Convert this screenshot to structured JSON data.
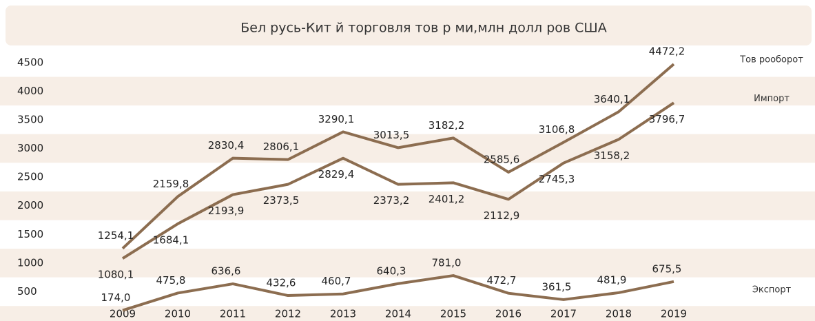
{
  "chart_data": {
    "type": "line",
    "title": "Бел русь-Кит й торговля тов р ми,млн долл ров США",
    "categories": [
      "2009",
      "2010",
      "2011",
      "2012",
      "2013",
      "2014",
      "2015",
      "2016",
      "2017",
      "2018",
      "2019"
    ],
    "series": [
      {
        "name": "Тов рооборот",
        "color": "#8c6d50",
        "values": [
          1254.1,
          2159.8,
          2830.4,
          2806.1,
          3290.1,
          3013.5,
          3182.2,
          2585.6,
          3106.8,
          3640.1,
          4472.2
        ],
        "value_labels": [
          "1254,1",
          "2159,8",
          "2830,4",
          "2806,1",
          "3290,1",
          "3013,5",
          "3182,2",
          "2585,6",
          "3106,8",
          "3640,1",
          "4472,2"
        ]
      },
      {
        "name": "Импорт",
        "color": "#8c6d50",
        "values": [
          1080.1,
          1684.1,
          2193.9,
          2373.5,
          2829.4,
          2373.2,
          2401.2,
          2112.9,
          2745.3,
          3158.2,
          3796.7
        ],
        "value_labels": [
          "1080,1",
          "1684,1",
          "2193,9",
          "2373,5",
          "2829,4",
          "2373,2",
          "2401,2",
          "2112,9",
          "2745,3",
          "3158,2",
          "3796,7"
        ]
      },
      {
        "name": "Экспорт",
        "color": "#8c6d50",
        "values": [
          174.0,
          475.8,
          636.6,
          432.6,
          460.7,
          640.3,
          781.0,
          472.7,
          361.5,
          481.9,
          675.5
        ],
        "value_labels": [
          "174,0",
          "475,8",
          "636,6",
          "432,6",
          "460,7",
          "640,3",
          "781,0",
          "472,7",
          "361,5",
          "481,9",
          "675,5"
        ]
      }
    ],
    "ylim": [
      0,
      4750
    ],
    "yticks": [
      500,
      1000,
      1500,
      2000,
      2500,
      3000,
      3500,
      4000,
      4500
    ],
    "grid": "bands"
  }
}
